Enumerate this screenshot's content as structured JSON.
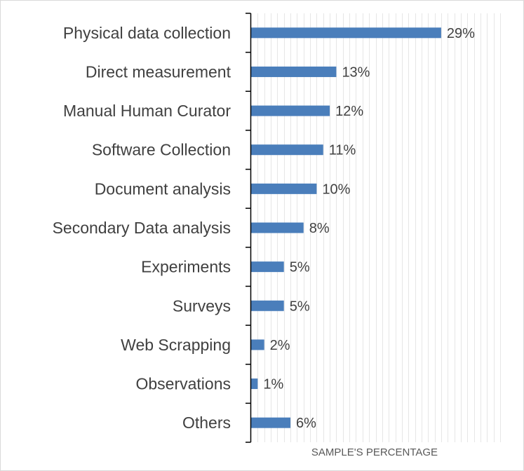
{
  "chart_data": {
    "type": "bar",
    "orientation": "horizontal",
    "categories": [
      "Physical data collection",
      "Direct measurement",
      "Manual Human Curator",
      "Software Collection",
      "Document analysis",
      "Secondary Data analysis",
      "Experiments",
      "Surveys",
      "Web Scrapping",
      "Observations",
      "Others"
    ],
    "values": [
      29,
      13,
      12,
      11,
      10,
      8,
      5,
      5,
      2,
      1,
      6
    ],
    "value_labels": [
      "29%",
      "13%",
      "12%",
      "11%",
      "10%",
      "8%",
      "5%",
      "5%",
      "2%",
      "1%",
      "6%"
    ],
    "title": "",
    "xlabel": "SAMPLE'S PERCENTAGE",
    "ylabel": "",
    "xlim": [
      0,
      38
    ],
    "grid": "vertical",
    "legend": "none",
    "bar_color": "#4a7ebb",
    "grid_color": "#e6e6e6",
    "axis_color": "#000000"
  }
}
